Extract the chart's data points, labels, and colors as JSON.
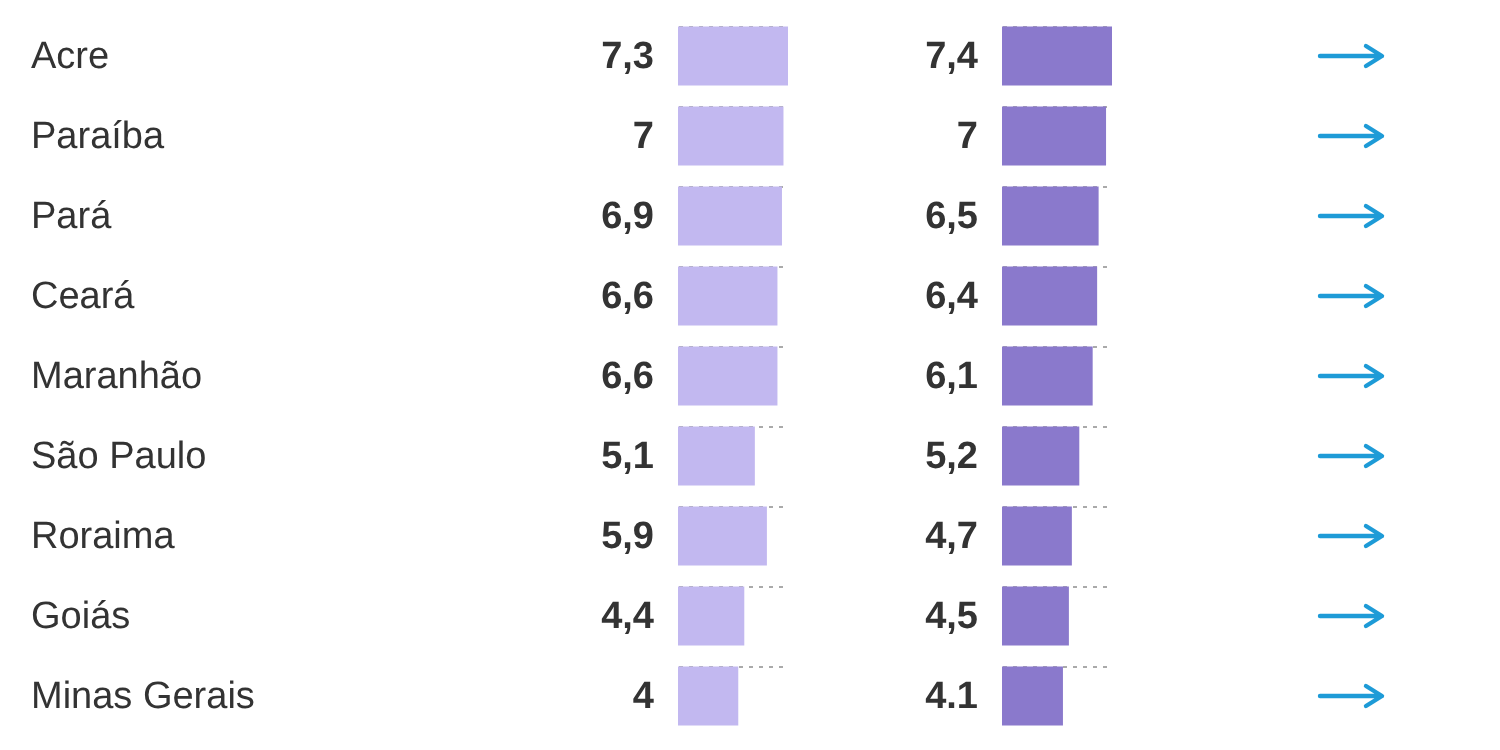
{
  "chart_data": [
    {
      "type": "bar",
      "orientation": "horizontal",
      "grid": true,
      "categories": [
        "Acre",
        "Paraíba",
        "Pará",
        "Ceará",
        "Maranhão",
        "São Paulo",
        "Roraima",
        "Goiás",
        "Minas Gerais"
      ],
      "color": "#c2b8f0",
      "values": [
        7.3,
        7,
        6.9,
        6.6,
        6.6,
        5.1,
        5.9,
        4.4,
        4
      ],
      "value_labels": [
        "7,3",
        "7",
        "6,9",
        "6,6",
        "6,6",
        "5,1",
        "5,9",
        "4,4",
        "4"
      ]
    },
    {
      "type": "bar",
      "orientation": "horizontal",
      "grid": true,
      "tick_labels": false,
      "categories": [
        null,
        null,
        null,
        null,
        null,
        null,
        null,
        null,
        null
      ],
      "color": "#8a79cc",
      "values": [
        7.4,
        7,
        6.5,
        6.4,
        6.1,
        5.2,
        4.7,
        4.5,
        4.1
      ],
      "value_labels": [
        "7,4",
        "7",
        "6,5",
        "6,4",
        "6,1",
        "5,2",
        "4,7",
        "4,5",
        "4.1"
      ]
    }
  ]
}
